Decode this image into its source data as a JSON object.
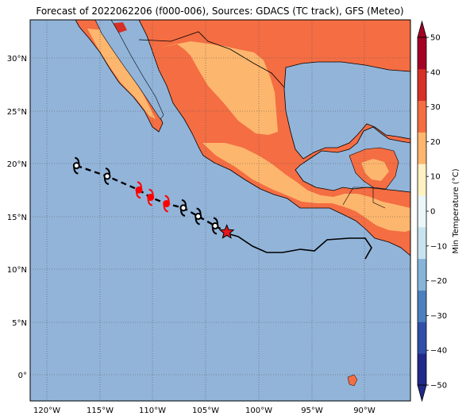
{
  "title": "Forecast of 2022062206 (f000-006), Sources: GDACS (TC track), GFS (Meteo)",
  "map": {
    "lon_ticks": [
      "120°W",
      "115°W",
      "110°W",
      "105°W",
      "100°W",
      "95°W",
      "90°W"
    ],
    "lat_ticks": [
      "30°N",
      "25°N",
      "20°N",
      "15°N",
      "10°N",
      "5°N",
      "0°"
    ],
    "ocean_color": "#92b4d9",
    "grid": "dotted"
  },
  "colorbar": {
    "label": "Min Temperature (°C)",
    "ticks": [
      "50",
      "40",
      "30",
      "20",
      "10",
      "0",
      "−10",
      "−20",
      "−30",
      "−40",
      "−50"
    ],
    "levels": [
      {
        "color": "#1f2a8a"
      },
      {
        "color": "#2f4fa8"
      },
      {
        "color": "#4b7fbf"
      },
      {
        "color": "#86b4d8"
      },
      {
        "color": "#c7e3ef"
      },
      {
        "color": "#eaf6f8"
      },
      {
        "color": "#fff1c2"
      },
      {
        "color": "#fdb66d"
      },
      {
        "color": "#f46d43"
      },
      {
        "color": "#d73027"
      },
      {
        "color": "#a50026"
      }
    ]
  },
  "track": {
    "color_observed": "#000000",
    "color_forecast": "#ff0000",
    "points": [
      {
        "lon": -117.2,
        "lat": 19.8,
        "color": "black"
      },
      {
        "lon": -114.3,
        "lat": 18.8,
        "color": "black"
      },
      {
        "lon": -111.3,
        "lat": 17.5,
        "color": "red"
      },
      {
        "lon": -110.2,
        "lat": 16.8,
        "color": "red"
      },
      {
        "lon": -108.7,
        "lat": 16.2,
        "color": "red"
      },
      {
        "lon": -107.1,
        "lat": 15.8,
        "color": "black"
      },
      {
        "lon": -105.7,
        "lat": 15.0,
        "color": "black"
      },
      {
        "lon": -104.1,
        "lat": 14.1,
        "color": "black"
      },
      {
        "lon": -103.0,
        "lat": 13.5,
        "color": "current"
      }
    ]
  }
}
